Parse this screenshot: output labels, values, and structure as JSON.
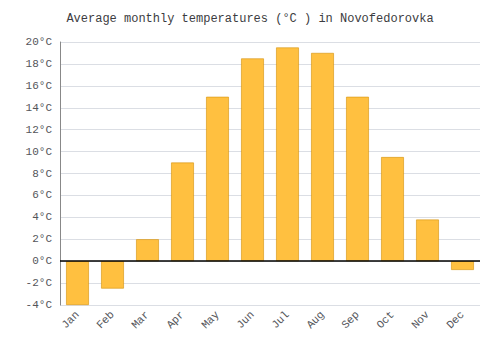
{
  "chart_data": {
    "type": "bar",
    "title": "Average monthly temperatures (°C ) in Novofedorovka",
    "categories": [
      "Jan",
      "Feb",
      "Mar",
      "Apr",
      "May",
      "Jun",
      "Jul",
      "Aug",
      "Sep",
      "Oct",
      "Nov",
      "Dec"
    ],
    "values": [
      -4.0,
      -2.5,
      2.0,
      9.0,
      15.0,
      18.5,
      19.5,
      19.0,
      15.0,
      9.5,
      3.8,
      -0.8
    ],
    "color": "#FFC040",
    "ylim": [
      -4,
      20
    ],
    "yticks": [
      {
        "value": -4,
        "label": "-4°C"
      },
      {
        "value": -2,
        "label": "-2°C"
      },
      {
        "value": 0,
        "label": "0°C"
      },
      {
        "value": 2,
        "label": "2°C"
      },
      {
        "value": 4,
        "label": "4°C"
      },
      {
        "value": 6,
        "label": "6°C"
      },
      {
        "value": 8,
        "label": "8°C"
      },
      {
        "value": 10,
        "label": "10°C"
      },
      {
        "value": 12,
        "label": "12°C"
      },
      {
        "value": 14,
        "label": "14°C"
      },
      {
        "value": 16,
        "label": "16°C"
      },
      {
        "value": 18,
        "label": "18°C"
      },
      {
        "value": 20,
        "label": "20°C"
      }
    ],
    "grid": true
  }
}
